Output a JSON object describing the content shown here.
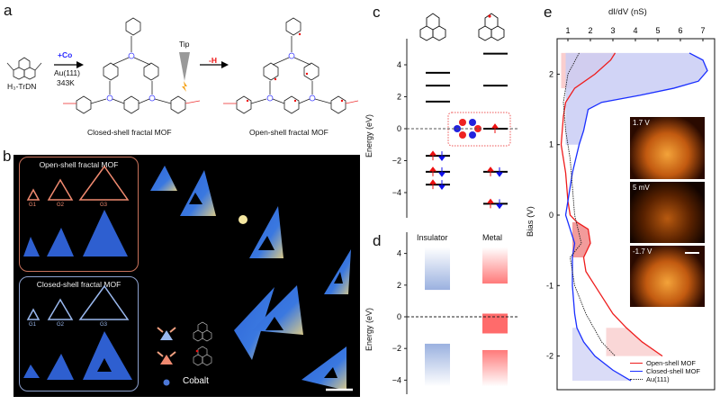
{
  "panels": {
    "a": {
      "label": "a",
      "precursor": "H₃-TrDN",
      "step1_reagent": "+Co",
      "step1_conditions": [
        "Au(111)",
        "343K"
      ],
      "tip_label": "Tip",
      "step2_reagent": "-H",
      "closed_caption": "Closed-shell fractal MOF",
      "open_caption": "Open-shell fractal MOF",
      "colors": {
        "cobalt": "#3a3aff",
        "removal": "#e11",
        "bond": "#e33"
      }
    },
    "b": {
      "label": "b",
      "open_box_title": "Open-shell fractal MOF",
      "closed_box_title": "Closed-shell fractal MOF",
      "generations": [
        "G1",
        "G2",
        "G3"
      ],
      "legend_cobalt": "Cobalt",
      "colors": {
        "open": "#f08a70",
        "closed": "#9ab8ee"
      }
    },
    "c": {
      "label": "c",
      "ylabel": "Energy (eV)",
      "ticks": [
        4,
        2,
        0,
        -2,
        -4
      ],
      "ylim": [
        -5.5,
        5.5
      ],
      "closed_levels_unoccupied": [
        3.5,
        2.7,
        1.7
      ],
      "closed_levels_occupied": [
        -1.7,
        -2.7,
        -3.5
      ],
      "open_levels_unoccupied": [
        4.7,
        2.7
      ],
      "open_level_singly_occupied": 0,
      "open_levels_occupied": [
        -2.7,
        -4.7
      ]
    },
    "d": {
      "label": "d",
      "ylabel": "Energy (eV)",
      "ticks": [
        4,
        2,
        0,
        -2,
        -4
      ],
      "columns": [
        "Insulator",
        "Metal"
      ],
      "insulator_bands": [
        [
          1.7,
          4.4
        ],
        [
          -4.4,
          -1.7
        ]
      ],
      "metal_bands": [
        [
          2.1,
          4.4
        ],
        [
          -1.05,
          0.2
        ],
        [
          -4.4,
          -2.1
        ]
      ],
      "colors": {
        "insulator": "#8fa8dc",
        "metal": "#ff6b6b"
      }
    },
    "e": {
      "label": "e",
      "insets": [
        "1.7 V",
        "5 mV",
        "-1.7 V"
      ]
    }
  },
  "chart_data": {
    "type": "line",
    "xlabel": "dI/dV (nS)",
    "ylabel": "Bias (V)",
    "xlim": [
      0.5,
      7.6
    ],
    "ylim": [
      -2.5,
      2.5
    ],
    "xticks": [
      1,
      2,
      3,
      4,
      5,
      6,
      7
    ],
    "yticks": [
      2,
      1,
      0,
      -1,
      -2
    ],
    "legend_position": "bottom-right",
    "series": [
      {
        "name": "Open-shell MOF",
        "color": "#ee1c1c",
        "style": "solid",
        "points": [
          [
            3.1,
            2.3
          ],
          [
            2.9,
            2.2
          ],
          [
            2.2,
            2.0
          ],
          [
            1.3,
            1.8
          ],
          [
            0.9,
            1.6
          ],
          [
            0.8,
            1.4
          ],
          [
            0.7,
            1.0
          ],
          [
            0.9,
            0.6
          ],
          [
            1.0,
            0.2
          ],
          [
            1.1,
            0.0
          ],
          [
            1.4,
            -0.1
          ],
          [
            1.9,
            -0.2
          ],
          [
            2.0,
            -0.4
          ],
          [
            1.7,
            -0.6
          ],
          [
            1.8,
            -0.8
          ],
          [
            2.2,
            -1.0
          ],
          [
            2.6,
            -1.2
          ],
          [
            3.0,
            -1.4
          ],
          [
            3.6,
            -1.6
          ],
          [
            4.3,
            -1.8
          ],
          [
            5.2,
            -2.0
          ]
        ]
      },
      {
        "name": "Closed-shell MOF",
        "color": "#1a2fff",
        "style": "solid",
        "points": [
          [
            6.4,
            2.3
          ],
          [
            7.0,
            2.2
          ],
          [
            7.2,
            2.05
          ],
          [
            6.8,
            1.9
          ],
          [
            5.7,
            1.8
          ],
          [
            4.2,
            1.7
          ],
          [
            2.5,
            1.6
          ],
          [
            1.9,
            1.5
          ],
          [
            1.7,
            1.2
          ],
          [
            1.5,
            1.0
          ],
          [
            1.2,
            0.6
          ],
          [
            1.0,
            0.2
          ],
          [
            0.9,
            0.0
          ],
          [
            1.1,
            -0.2
          ],
          [
            1.3,
            -0.4
          ],
          [
            1.2,
            -0.6
          ],
          [
            1.2,
            -1.0
          ],
          [
            1.3,
            -1.4
          ],
          [
            1.4,
            -1.6
          ],
          [
            1.7,
            -1.8
          ],
          [
            2.2,
            -2.0
          ],
          [
            3.0,
            -2.2
          ],
          [
            3.8,
            -2.35
          ]
        ]
      },
      {
        "name": "Au(111)",
        "color": "#222222",
        "style": "dotted",
        "points": [
          [
            1.5,
            2.3
          ],
          [
            1.0,
            2.0
          ],
          [
            0.8,
            1.6
          ],
          [
            0.9,
            1.2
          ],
          [
            1.1,
            0.8
          ],
          [
            1.2,
            0.4
          ],
          [
            1.3,
            0.0
          ],
          [
            1.6,
            -0.4
          ],
          [
            1.1,
            -0.6
          ],
          [
            1.3,
            -1.0
          ],
          [
            1.8,
            -1.4
          ],
          [
            2.5,
            -1.8
          ],
          [
            3.1,
            -2.0
          ]
        ]
      }
    ],
    "shaded_regions": [
      {
        "series": "Open-shell MOF",
        "bias_range": [
          1.8,
          2.3
        ],
        "x_baseline": 0.7,
        "color": "#f9c5c5"
      },
      {
        "series": "Closed-shell MOF",
        "bias_range": [
          1.0,
          2.3
        ],
        "x_baseline": 0.9,
        "color": "#c9cdf4"
      },
      {
        "series": "Open-shell MOF",
        "bias_range": [
          -0.6,
          -0.1
        ],
        "x_baseline": 1.2,
        "color": "#f08a8a"
      },
      {
        "series": "Open-shell MOF",
        "bias_range": [
          -2.0,
          -1.5
        ],
        "x_baseline": 2.7,
        "color": "#f9d0d0"
      },
      {
        "series": "Closed-shell MOF",
        "bias_range": [
          -2.35,
          -1.5
        ],
        "x_baseline": 1.2,
        "color": "#d3d6f6"
      }
    ]
  }
}
